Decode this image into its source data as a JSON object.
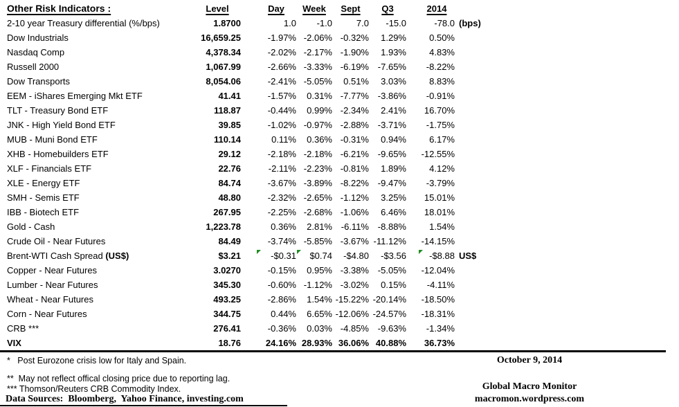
{
  "table": {
    "title": "Other Risk Indicators :",
    "columns": [
      "Level",
      "Day",
      "Week",
      "Sept",
      "Q3",
      "2014"
    ],
    "rows": [
      {
        "label": "2-10 year Treasury differential (%/bps)",
        "level": "1.8700",
        "values": [
          "1.0",
          "-1.0",
          "7.0",
          "-15.0",
          "-78.0"
        ],
        "suffix": "(bps)"
      },
      {
        "label": "Dow Industrials",
        "level": "16,659.25",
        "values": [
          "-1.97%",
          "-2.06%",
          "-0.32%",
          "1.29%",
          "0.50%"
        ]
      },
      {
        "label": "Nasdaq Comp",
        "level": "4,378.34",
        "values": [
          "-2.02%",
          "-2.17%",
          "-1.90%",
          "1.93%",
          "4.83%"
        ]
      },
      {
        "label": "Russell 2000",
        "level": "1,067.99",
        "values": [
          "-2.66%",
          "-3.33%",
          "-6.19%",
          "-7.65%",
          "-8.22%"
        ]
      },
      {
        "label": "Dow Transports",
        "level": "8,054.06",
        "values": [
          "-2.41%",
          "-5.05%",
          "0.51%",
          "3.03%",
          "8.83%"
        ]
      },
      {
        "label": "EEM - iShares Emerging Mkt ETF",
        "level": "41.41",
        "values": [
          "-1.57%",
          "0.31%",
          "-7.77%",
          "-3.86%",
          "-0.91%"
        ]
      },
      {
        "label": "TLT - Treasury Bond ETF",
        "level": "118.87",
        "values": [
          "-0.44%",
          "0.99%",
          "-2.34%",
          "2.41%",
          "16.70%"
        ]
      },
      {
        "label": "JNK - High Yield Bond ETF",
        "level": "39.85",
        "values": [
          "-1.02%",
          "-0.97%",
          "-2.88%",
          "-3.71%",
          "-1.75%"
        ]
      },
      {
        "label": "MUB - Muni Bond ETF",
        "level": "110.14",
        "values": [
          "0.11%",
          "0.36%",
          "-0.31%",
          "0.94%",
          "6.17%"
        ]
      },
      {
        "label": "XHB - Homebuilders ETF",
        "level": "29.12",
        "values": [
          "-2.18%",
          "-2.18%",
          "-6.21%",
          "-9.65%",
          "-12.55%"
        ]
      },
      {
        "label": "XLF - Financials ETF",
        "level": "22.76",
        "values": [
          "-2.11%",
          "-2.23%",
          "-0.81%",
          "1.89%",
          "4.12%"
        ]
      },
      {
        "label": "XLE - Energy ETF",
        "level": "84.74",
        "values": [
          "-3.67%",
          "-3.89%",
          "-8.22%",
          "-9.47%",
          "-3.79%"
        ]
      },
      {
        "label": "SMH - Semis ETF",
        "level": "48.80",
        "values": [
          "-2.32%",
          "-2.65%",
          "-1.12%",
          "3.25%",
          "15.01%"
        ]
      },
      {
        "label": "IBB - Biotech ETF",
        "level": "267.95",
        "values": [
          "-2.25%",
          "-2.68%",
          "-1.06%",
          "6.46%",
          "18.01%"
        ]
      },
      {
        "label": "Gold - Cash",
        "level": "1,223.78",
        "values": [
          "0.36%",
          "2.81%",
          "-6.11%",
          "-8.88%",
          "1.54%"
        ]
      },
      {
        "label": "Crude Oil - Near Futures",
        "level": "84.49",
        "values": [
          "-3.74%",
          "-5.85%",
          "-3.67%",
          "-11.12%",
          "-14.15%"
        ]
      },
      {
        "label": "Brent-WTI Cash Spread ",
        "label_bold": "(US$)",
        "level": "$3.21",
        "values": [
          "-$0.31",
          "$0.74",
          "-$4.80",
          "-$3.56",
          "-$8.88"
        ],
        "suffix": "US$",
        "flags": [
          0,
          1,
          4
        ]
      },
      {
        "label": "Copper - Near Futures",
        "level": "3.0270",
        "values": [
          "-0.15%",
          "0.95%",
          "-3.38%",
          "-5.05%",
          "-12.04%"
        ]
      },
      {
        "label": "Lumber - Near Futures",
        "level": "345.30",
        "values": [
          "-0.60%",
          "-1.12%",
          "-3.02%",
          "0.15%",
          "-4.11%"
        ]
      },
      {
        "label": "Wheat - Near Futures",
        "level": "493.25",
        "values": [
          "-2.86%",
          "1.54%",
          "-15.22%",
          "-20.14%",
          "-18.50%"
        ]
      },
      {
        "label": "Corn - Near Futures",
        "level": "344.75",
        "values": [
          "0.44%",
          "6.65%",
          "-12.06%",
          "-24.57%",
          "-18.31%"
        ]
      },
      {
        "label": "CRB ***",
        "level": "276.41",
        "values": [
          "-0.36%",
          "0.03%",
          "-4.85%",
          "-9.63%",
          "-1.34%"
        ]
      },
      {
        "label": "VIX",
        "level": "18.76",
        "values": [
          "24.16%",
          "28.93%",
          "36.06%",
          "40.88%",
          "36.73%"
        ],
        "bold": true
      }
    ]
  },
  "flag_color": "#1e8c1e",
  "footnotes": [
    "*   Post Eurozone crisis low for Italy and Spain.",
    "**  May not reflect offical closing price due to reporting lag.",
    "*** Thomson/Reuters CRB Commodity Index."
  ],
  "data_sources": "Data Sources:  Bloomberg,  Yahoo Finance, investing.com",
  "footer_right": {
    "date": "October 9, 2014",
    "brand": "Global Macro Monitor",
    "url": "macromon.wordpress.com"
  }
}
